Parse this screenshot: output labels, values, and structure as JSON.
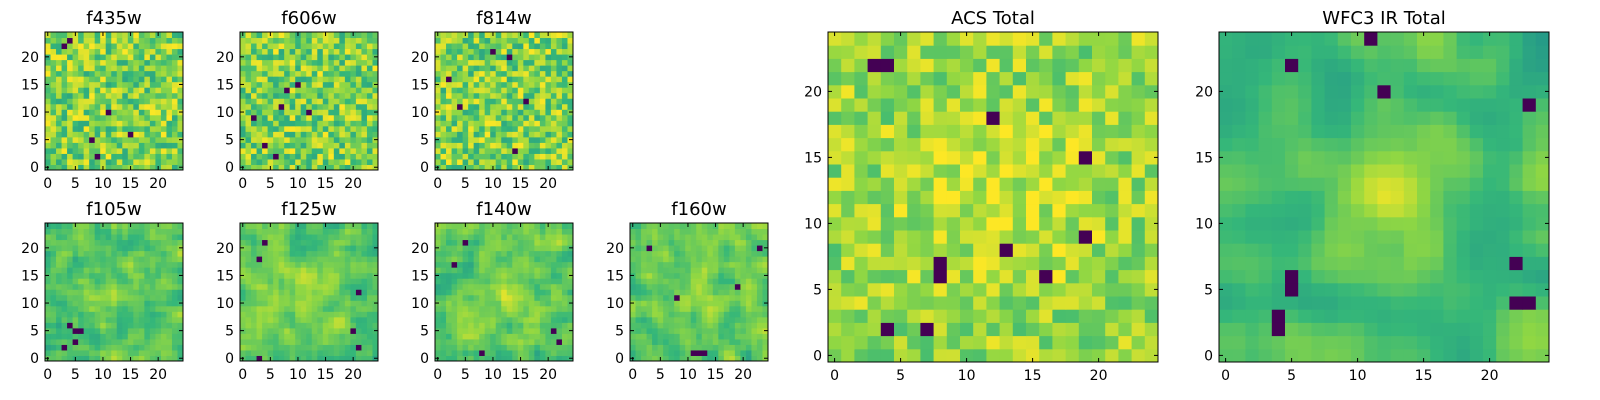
{
  "chart_data": [
    {
      "type": "heatmap",
      "title": "f435w",
      "seed": 11,
      "kind": "noise",
      "dark": [
        [
          3,
          22
        ],
        [
          8,
          5
        ],
        [
          11,
          10
        ],
        [
          9,
          2
        ],
        [
          15,
          6
        ],
        [
          4,
          23
        ]
      ],
      "x_ticks": [
        0,
        5,
        10,
        15,
        20
      ],
      "y_ticks": [
        0,
        5,
        10,
        15,
        20
      ],
      "xlim": [
        -0.5,
        24.5
      ],
      "ylim": [
        -0.5,
        24.5
      ]
    },
    {
      "type": "heatmap",
      "title": "f606w",
      "seed": 23,
      "kind": "noise",
      "dark": [
        [
          8,
          14
        ],
        [
          10,
          15
        ],
        [
          7,
          11
        ],
        [
          6,
          2
        ],
        [
          2,
          9
        ],
        [
          4,
          4
        ],
        [
          12,
          10
        ]
      ],
      "x_ticks": [
        0,
        5,
        10,
        15,
        20
      ],
      "y_ticks": [
        0,
        5,
        10,
        15,
        20
      ],
      "xlim": [
        -0.5,
        24.5
      ],
      "ylim": [
        -0.5,
        24.5
      ]
    },
    {
      "type": "heatmap",
      "title": "f814w",
      "seed": 37,
      "kind": "noise",
      "dark": [
        [
          4,
          11
        ],
        [
          2,
          16
        ],
        [
          16,
          12
        ],
        [
          14,
          3
        ],
        [
          10,
          21
        ],
        [
          13,
          20
        ]
      ],
      "x_ticks": [
        0,
        5,
        10,
        15,
        20
      ],
      "y_ticks": [
        0,
        5,
        10,
        15,
        20
      ],
      "xlim": [
        -0.5,
        24.5
      ],
      "ylim": [
        -0.5,
        24.5
      ]
    },
    {
      "type": "heatmap",
      "title": "f105w",
      "seed": 41,
      "kind": "smooth",
      "dark": [
        [
          4,
          6
        ],
        [
          5,
          5
        ],
        [
          5,
          3
        ],
        [
          6,
          5
        ],
        [
          3,
          2
        ]
      ],
      "x_ticks": [
        0,
        5,
        10,
        15,
        20
      ],
      "y_ticks": [
        0,
        5,
        10,
        15,
        20
      ],
      "xlim": [
        -0.5,
        24.5
      ],
      "ylim": [
        -0.5,
        24.5
      ]
    },
    {
      "type": "heatmap",
      "title": "f125w",
      "seed": 53,
      "kind": "smooth",
      "dark": [
        [
          3,
          18
        ],
        [
          4,
          21
        ],
        [
          21,
          12
        ],
        [
          20,
          5
        ],
        [
          21,
          2
        ],
        [
          3,
          0
        ]
      ],
      "x_ticks": [
        0,
        5,
        10,
        15,
        20
      ],
      "y_ticks": [
        0,
        5,
        10,
        15,
        20
      ],
      "xlim": [
        -0.5,
        24.5
      ],
      "ylim": [
        -0.5,
        24.5
      ]
    },
    {
      "type": "heatmap",
      "title": "f140w",
      "seed": 67,
      "kind": "smooth",
      "dark": [
        [
          5,
          21
        ],
        [
          8,
          1
        ],
        [
          3,
          17
        ],
        [
          21,
          5
        ],
        [
          22,
          3
        ]
      ],
      "x_ticks": [
        0,
        5,
        10,
        15,
        20
      ],
      "y_ticks": [
        0,
        5,
        10,
        15,
        20
      ],
      "xlim": [
        -0.5,
        24.5
      ],
      "ylim": [
        -0.5,
        24.5
      ]
    },
    {
      "type": "heatmap",
      "title": "f160w",
      "seed": 79,
      "kind": "smooth",
      "dark": [
        [
          11,
          1
        ],
        [
          12,
          1
        ],
        [
          13,
          1
        ],
        [
          3,
          20
        ],
        [
          19,
          13
        ],
        [
          23,
          20
        ],
        [
          8,
          11
        ]
      ],
      "x_ticks": [
        0,
        5,
        10,
        15,
        20
      ],
      "y_ticks": [
        0,
        5,
        10,
        15,
        20
      ],
      "xlim": [
        -0.5,
        24.5
      ],
      "ylim": [
        -0.5,
        24.5
      ]
    },
    {
      "type": "heatmap",
      "title": "ACS Total",
      "seed": 91,
      "kind": "acs",
      "dark": [
        [
          3,
          22
        ],
        [
          4,
          22
        ],
        [
          8,
          7
        ],
        [
          8,
          6
        ],
        [
          13,
          8
        ],
        [
          19,
          9
        ],
        [
          12,
          18
        ],
        [
          16,
          6
        ],
        [
          7,
          2
        ],
        [
          4,
          2
        ],
        [
          19,
          15
        ]
      ],
      "x_ticks": [
        0,
        5,
        10,
        15,
        20
      ],
      "y_ticks": [
        0,
        5,
        10,
        15,
        20
      ],
      "xlim": [
        -0.5,
        24.5
      ],
      "ylim": [
        -0.5,
        24.5
      ]
    },
    {
      "type": "heatmap",
      "title": "WFC3 IR Total",
      "seed": 103,
      "kind": "ir",
      "dark": [
        [
          5,
          5
        ],
        [
          5,
          6
        ],
        [
          4,
          3
        ],
        [
          4,
          2
        ],
        [
          22,
          4
        ],
        [
          23,
          4
        ],
        [
          23,
          19
        ],
        [
          12,
          20
        ],
        [
          5,
          22
        ],
        [
          11,
          24
        ],
        [
          22,
          7
        ]
      ],
      "x_ticks": [
        0,
        5,
        10,
        15,
        20
      ],
      "y_ticks": [
        0,
        5,
        10,
        15,
        20
      ],
      "xlim": [
        -0.5,
        24.5
      ],
      "ylim": [
        -0.5,
        24.5
      ]
    }
  ],
  "colormap": [
    "#440154",
    "#3b528b",
    "#21918c",
    "#35b779",
    "#90d743",
    "#fde725"
  ]
}
